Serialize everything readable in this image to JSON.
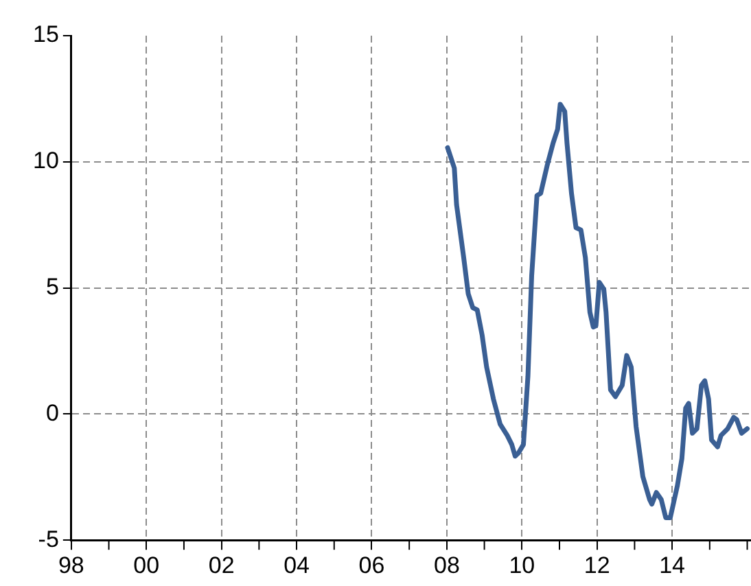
{
  "chart_data": {
    "type": "line",
    "x": [
      2008.02,
      2008.2,
      2008.26,
      2008.45,
      2008.57,
      2008.69,
      2008.81,
      2008.94,
      2009.06,
      2009.24,
      2009.42,
      2009.61,
      2009.73,
      2009.82,
      2009.91,
      2010.04,
      2010.16,
      2010.26,
      2010.4,
      2010.5,
      2010.67,
      2010.83,
      2010.95,
      2011.02,
      2011.14,
      2011.2,
      2011.32,
      2011.44,
      2011.57,
      2011.69,
      2011.81,
      2011.9,
      2011.97,
      2012.06,
      2012.18,
      2012.24,
      2012.36,
      2012.49,
      2012.67,
      2012.79,
      2012.91,
      2013.04,
      2013.22,
      2013.4,
      2013.46,
      2013.58,
      2013.71,
      2013.83,
      2013.95,
      2014.14,
      2014.26,
      2014.36,
      2014.44,
      2014.54,
      2014.66,
      2014.78,
      2014.87,
      2014.97,
      2015.05,
      2015.21,
      2015.3,
      2015.48,
      2015.64,
      2015.72,
      2015.85,
      2016.0
    ],
    "series": [
      {
        "color": "#3a5f94",
        "values": [
          10.56,
          9.75,
          8.3,
          6.2,
          4.77,
          4.22,
          4.13,
          3.13,
          1.86,
          0.6,
          -0.4,
          -0.85,
          -1.21,
          -1.67,
          -1.54,
          -1.21,
          1.5,
          5.49,
          8.66,
          8.75,
          9.84,
          10.74,
          11.29,
          12.28,
          12.0,
          10.74,
          8.75,
          7.39,
          7.3,
          6.2,
          4.04,
          3.45,
          3.5,
          5.22,
          4.95,
          4.04,
          0.96,
          0.69,
          1.14,
          2.32,
          1.86,
          -0.49,
          -2.48,
          -3.39,
          -3.57,
          -3.11,
          -3.39,
          -4.11,
          -4.11,
          -2.84,
          -1.76,
          0.23,
          0.42,
          -0.76,
          -0.58,
          1.14,
          1.32,
          0.6,
          -1.03,
          -1.3,
          -0.85,
          -0.58,
          -0.13,
          -0.22,
          -0.76,
          -0.58
        ]
      }
    ],
    "xlim": [
      1998,
      2016.1
    ],
    "xticks": [
      {
        "value": 1998,
        "label": "98"
      },
      {
        "value": 2000,
        "label": "00"
      },
      {
        "value": 2002,
        "label": "02"
      },
      {
        "value": 2004,
        "label": "04"
      },
      {
        "value": 2006,
        "label": "06"
      },
      {
        "value": 2008,
        "label": "08"
      },
      {
        "value": 2010,
        "label": "10"
      },
      {
        "value": 2012,
        "label": "12"
      },
      {
        "value": 2014,
        "label": "14"
      }
    ],
    "ylim": [
      -5,
      15
    ],
    "yticks": [
      -5,
      0,
      5,
      10,
      15
    ],
    "grid": true,
    "legend": false,
    "marker": "none",
    "line_style": "solid"
  }
}
